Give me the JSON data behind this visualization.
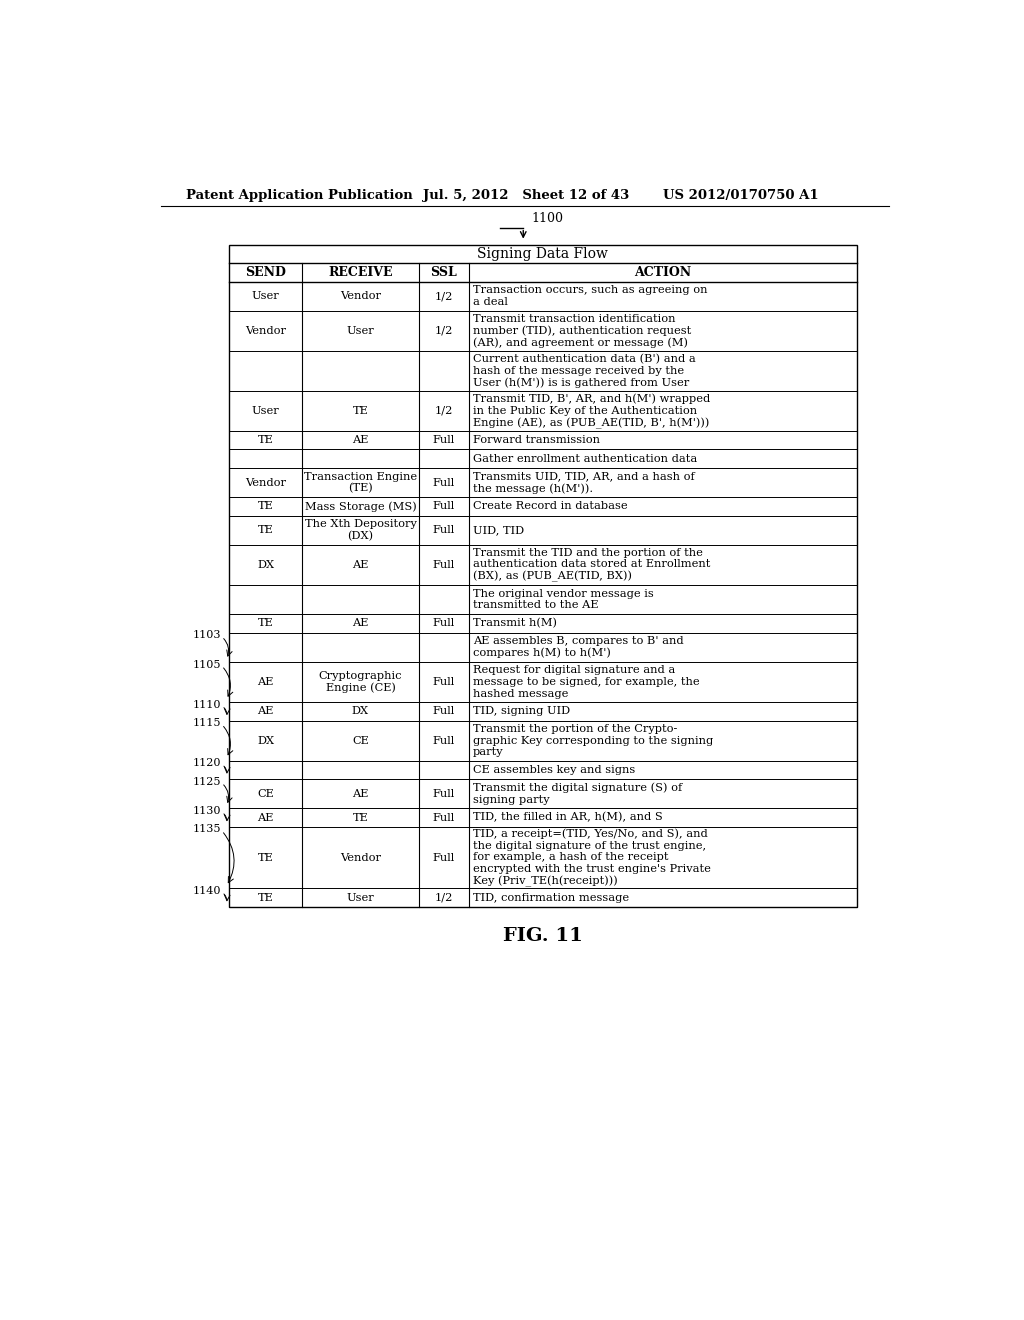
{
  "header_left": "Patent Application Publication",
  "header_mid": "Jul. 5, 2012   Sheet 12 of 43",
  "header_right": "US 2012/0170750 A1",
  "ref_number": "1100",
  "table_title": "Signing Data Flow",
  "col_headers": [
    "SEND",
    "RECEIVE",
    "SSL",
    "ACTION"
  ],
  "rows": [
    {
      "send": "User",
      "receive": "Vendor",
      "ssl": "1/2",
      "action": "Transaction occurs, such as agreeing on\na deal",
      "label": ""
    },
    {
      "send": "Vendor",
      "receive": "User",
      "ssl": "1/2",
      "action": "Transmit transaction identification\nnumber (TID), authentication request\n(AR), and agreement or message (M)",
      "label": ""
    },
    {
      "send": "",
      "receive": "",
      "ssl": "",
      "action": "Current authentication data (B') and a\nhash of the message received by the\nUser (h(M')) is is gathered from User",
      "label": ""
    },
    {
      "send": "User",
      "receive": "TE",
      "ssl": "1/2",
      "action": "Transmit TID, B', AR, and h(M') wrapped\nin the Public Key of the Authentication\nEngine (AE), as (PUB_AE(TID, B', h(M')))",
      "label": ""
    },
    {
      "send": "TE",
      "receive": "AE",
      "ssl": "Full",
      "action": "Forward transmission",
      "label": ""
    },
    {
      "send": "",
      "receive": "",
      "ssl": "",
      "action": "Gather enrollment authentication data",
      "label": ""
    },
    {
      "send": "Vendor",
      "receive": "Transaction Engine\n(TE)",
      "ssl": "Full",
      "action": "Transmits UID, TID, AR, and a hash of\nthe message (h(M')).",
      "label": ""
    },
    {
      "send": "TE",
      "receive": "Mass Storage (MS)",
      "ssl": "Full",
      "action": "Create Record in database",
      "label": ""
    },
    {
      "send": "TE",
      "receive": "The Xth Depository\n(DX)",
      "ssl": "Full",
      "action": "UID, TID",
      "label": ""
    },
    {
      "send": "DX",
      "receive": "AE",
      "ssl": "Full",
      "action": "Transmit the TID and the portion of the\nauthentication data stored at Enrollment\n(BX), as (PUB_AE(TID, BX))",
      "label": ""
    },
    {
      "send": "",
      "receive": "",
      "ssl": "",
      "action": "The original vendor message is\ntransmitted to the AE",
      "label": ""
    },
    {
      "send": "TE",
      "receive": "AE",
      "ssl": "Full",
      "action": "Transmit h(M)",
      "label": ""
    },
    {
      "send": "",
      "receive": "",
      "ssl": "",
      "action": "AE assembles B, compares to B' and\ncompares h(M) to h(M')",
      "label": "1103"
    },
    {
      "send": "AE",
      "receive": "Cryptographic\nEngine (CE)",
      "ssl": "Full",
      "action": "Request for digital signature and a\nmessage to be signed, for example, the\nhashed message",
      "label": "1105"
    },
    {
      "send": "AE",
      "receive": "DX",
      "ssl": "Full",
      "action": "TID, signing UID",
      "label": "1110"
    },
    {
      "send": "DX",
      "receive": "CE",
      "ssl": "Full",
      "action": "Transmit the portion of the Crypto-\ngraphic Key corresponding to the signing\nparty",
      "label": "1115"
    },
    {
      "send": "",
      "receive": "",
      "ssl": "",
      "action": "CE assembles key and signs",
      "label": "1120"
    },
    {
      "send": "CE",
      "receive": "AE",
      "ssl": "Full",
      "action": "Transmit the digital signature (S) of\nsigning party",
      "label": "1125"
    },
    {
      "send": "AE",
      "receive": "TE",
      "ssl": "Full",
      "action": "TID, the filled in AR, h(M), and S",
      "label": "1130"
    },
    {
      "send": "TE",
      "receive": "Vendor",
      "ssl": "Full",
      "action": "TID, a receipt=(TID, Yes/No, and S), and\nthe digital signature of the trust engine,\nfor example, a hash of the receipt\nencrypted with the trust engine's Private\nKey (Priv_TE(h(receipt)))",
      "label": "1135"
    },
    {
      "send": "TE",
      "receive": "User",
      "ssl": "1/2",
      "action": "TID, confirmation message",
      "label": "1140"
    }
  ],
  "fig_label": "FIG. 11",
  "bg_color": "#ffffff",
  "text_color": "#000000"
}
